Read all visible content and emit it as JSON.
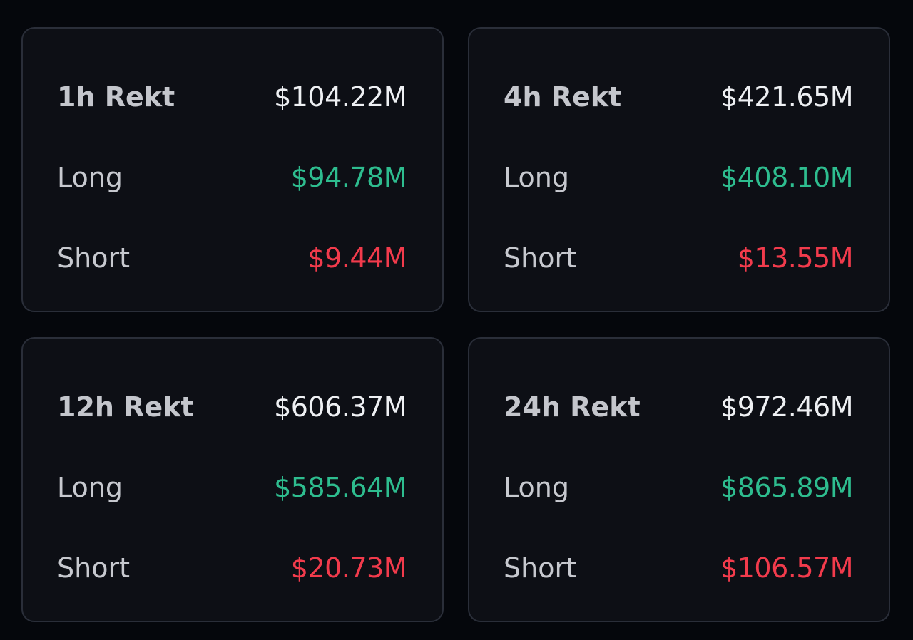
{
  "cards": [
    {
      "total_label": "1h Rekt",
      "total_value": "$104.22M",
      "long_label": "Long",
      "long_value": "$94.78M",
      "short_label": "Short",
      "short_value": "$9.44M"
    },
    {
      "total_label": "4h Rekt",
      "total_value": "$421.65M",
      "long_label": "Long",
      "long_value": "$408.10M",
      "short_label": "Short",
      "short_value": "$13.55M"
    },
    {
      "total_label": "12h Rekt",
      "total_value": "$606.37M",
      "long_label": "Long",
      "long_value": "$585.64M",
      "short_label": "Short",
      "short_value": "$20.73M"
    },
    {
      "total_label": "24h Rekt",
      "total_value": "$972.46M",
      "long_label": "Long",
      "long_value": "$865.89M",
      "short_label": "Short",
      "short_value": "$106.57M"
    }
  ],
  "colors": {
    "background": "#05070c",
    "card": "#0d0f15",
    "long": "#2ebd8f",
    "short": "#f23b4c"
  }
}
